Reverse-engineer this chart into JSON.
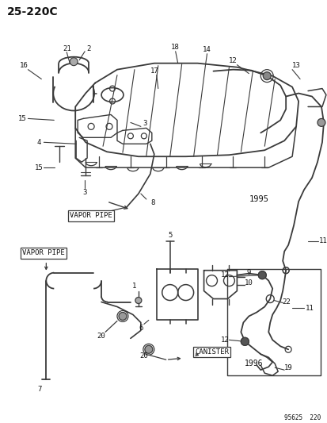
{
  "title": "25-220C",
  "footer": "95625  220",
  "bg": "#ffffff",
  "lc": "#3a3a3a",
  "tc": "#111111",
  "vapor_pipe_upper": "VAPOR PIPE",
  "vapor_pipe_lower": "VAPOR PIPE",
  "canister_label": "CANISTER",
  "year1": "1995",
  "year2": "1996"
}
